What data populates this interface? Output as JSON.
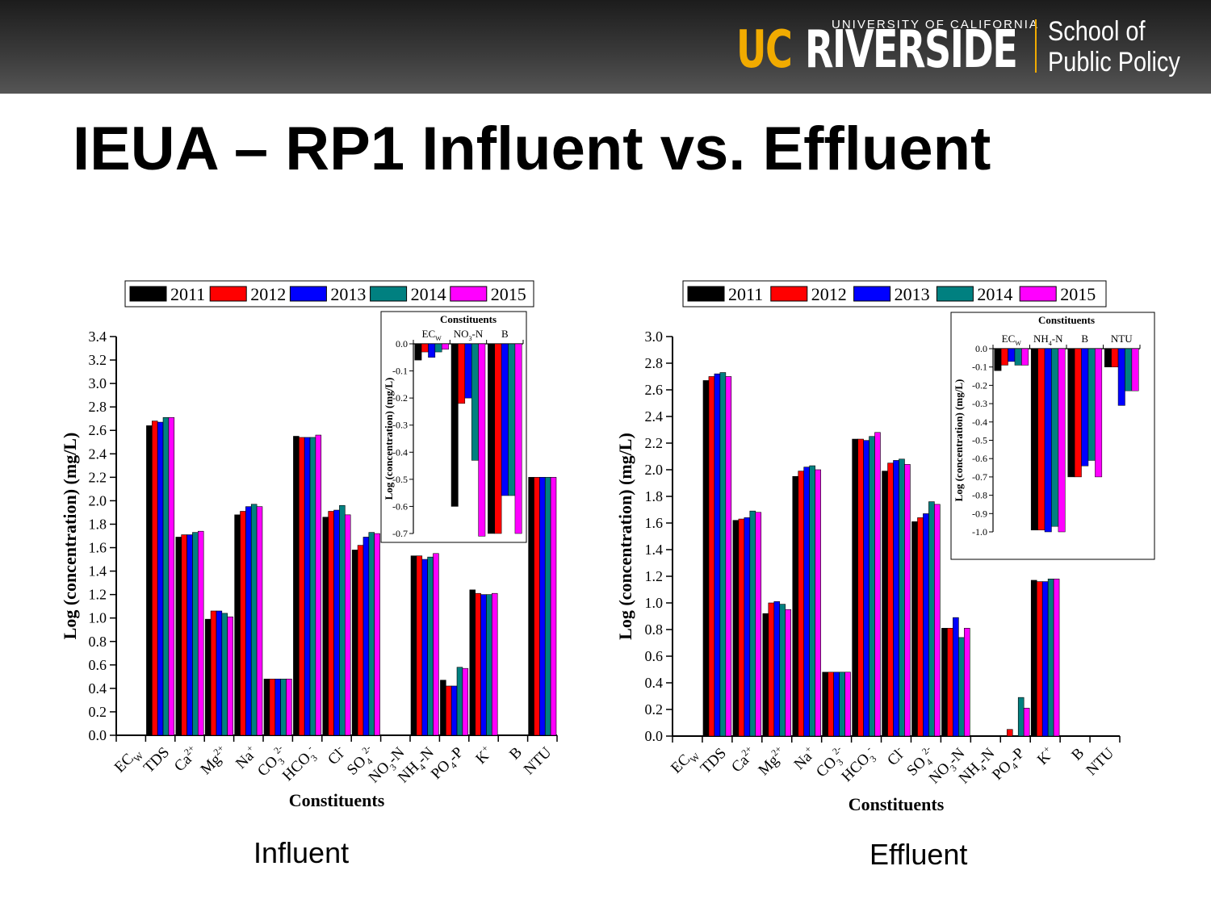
{
  "slide": {
    "title": "IEUA – RP1 Influent vs. Effluent",
    "logo_uc": "UC",
    "logo_riverside": "RIVERSIDE",
    "logo_university": "UNIVERSITY OF CALIFORNIA",
    "logo_school_line1": "School of",
    "logo_school_line2": "Public Policy",
    "caption_influent": "Influent",
    "caption_effluent": "Effluent",
    "brand_color": "#f1ab00"
  },
  "chart_data": [
    {
      "id": "influent-main",
      "type": "bar",
      "title": "",
      "xlabel": "Constituents",
      "ylabel": "Log (concentration) (mg/L)",
      "ylim": [
        0,
        3.4
      ],
      "yticks": [
        "0.0",
        "0.2",
        "0.4",
        "0.6",
        "0.8",
        "1.0",
        "1.2",
        "1.4",
        "1.6",
        "1.8",
        "2.0",
        "2.2",
        "2.4",
        "2.6",
        "2.8",
        "3.0",
        "3.2",
        "3.4"
      ],
      "categories": [
        "EC_W",
        "TDS",
        "Ca2+",
        "Mg2+",
        "Na+",
        "CO3 2-",
        "HCO3-",
        "Cl-",
        "SO4 2-",
        "NO3-N",
        "NH4-N",
        "PO4-P",
        "K+",
        "B",
        "NTU"
      ],
      "legend": [
        "2011",
        "2012",
        "2013",
        "2014",
        "2015"
      ],
      "colors": [
        "#000000",
        "#ff0000",
        "#0000ff",
        "#008080",
        "#ff00ff"
      ],
      "series": [
        {
          "name": "2011",
          "values": [
            null,
            2.64,
            1.69,
            0.99,
            1.88,
            0.48,
            2.55,
            1.86,
            1.58,
            null,
            1.53,
            0.47,
            1.24,
            null,
            2.2
          ]
        },
        {
          "name": "2012",
          "values": [
            null,
            2.68,
            1.71,
            1.06,
            1.91,
            0.48,
            2.54,
            1.91,
            1.62,
            null,
            1.53,
            0.42,
            1.21,
            null,
            2.2
          ]
        },
        {
          "name": "2013",
          "values": [
            null,
            2.67,
            1.71,
            1.06,
            1.95,
            0.48,
            2.54,
            1.92,
            1.69,
            null,
            1.5,
            0.42,
            1.2,
            null,
            2.2
          ]
        },
        {
          "name": "2014",
          "values": [
            null,
            2.71,
            1.73,
            1.04,
            1.97,
            0.48,
            2.54,
            1.96,
            1.73,
            null,
            1.52,
            0.58,
            1.2,
            null,
            2.2
          ]
        },
        {
          "name": "2015",
          "values": [
            null,
            2.71,
            1.74,
            1.01,
            1.95,
            0.48,
            2.56,
            1.88,
            1.72,
            null,
            1.55,
            0.57,
            1.21,
            null,
            2.2
          ]
        }
      ]
    },
    {
      "id": "influent-inset",
      "type": "bar",
      "title": "Constituents",
      "ylabel": "Log (concentration) (mg/L)",
      "ylim": [
        -0.7,
        0.0
      ],
      "yticks": [
        "0.0",
        "-0.1",
        "-0.2",
        "-0.3",
        "-0.4",
        "-0.5",
        "-0.6",
        "-0.7"
      ],
      "categories": [
        "EC_W",
        "NO3-N",
        "B"
      ],
      "series": [
        {
          "name": "2011",
          "values": [
            -0.06,
            -0.6,
            -0.7
          ]
        },
        {
          "name": "2012",
          "values": [
            -0.03,
            -0.22,
            -0.7
          ]
        },
        {
          "name": "2013",
          "values": [
            -0.05,
            -0.2,
            -0.56
          ]
        },
        {
          "name": "2014",
          "values": [
            -0.03,
            -0.43,
            -0.56
          ]
        },
        {
          "name": "2015",
          "values": [
            -0.02,
            -0.71,
            -0.7
          ]
        }
      ]
    },
    {
      "id": "effluent-main",
      "type": "bar",
      "title": "",
      "xlabel": "Constituents",
      "ylabel": "Log (concentration) (mg/L)",
      "ylim": [
        0,
        3.0
      ],
      "yticks": [
        "0.0",
        "0.2",
        "0.4",
        "0.6",
        "0.8",
        "1.0",
        "1.2",
        "1.4",
        "1.6",
        "1.8",
        "2.0",
        "2.2",
        "2.4",
        "2.6",
        "2.8",
        "3.0"
      ],
      "categories": [
        "EC_W",
        "TDS",
        "Ca2+",
        "Mg2+",
        "Na+",
        "CO3 2-",
        "HCO3-",
        "Cl-",
        "SO4 2-",
        "NO3-N",
        "NH4-N",
        "PO4-P",
        "K+",
        "B",
        "NTU"
      ],
      "legend": [
        "2011",
        "2012",
        "2013",
        "2014",
        "2015"
      ],
      "colors": [
        "#000000",
        "#ff0000",
        "#0000ff",
        "#008080",
        "#ff00ff"
      ],
      "series": [
        {
          "name": "2011",
          "values": [
            null,
            2.67,
            1.62,
            0.92,
            1.95,
            0.48,
            2.23,
            1.99,
            1.61,
            0.81,
            null,
            0.0,
            1.17,
            null,
            null
          ]
        },
        {
          "name": "2012",
          "values": [
            null,
            2.7,
            1.63,
            1.0,
            1.99,
            0.48,
            2.23,
            2.05,
            1.64,
            0.81,
            null,
            0.05,
            1.16,
            null,
            null
          ]
        },
        {
          "name": "2013",
          "values": [
            null,
            2.72,
            1.64,
            1.01,
            2.02,
            0.48,
            2.22,
            2.07,
            1.67,
            0.89,
            null,
            0.0,
            1.16,
            null,
            null
          ]
        },
        {
          "name": "2014",
          "values": [
            null,
            2.73,
            1.69,
            0.99,
            2.03,
            0.48,
            2.25,
            2.08,
            1.76,
            0.74,
            null,
            0.29,
            1.18,
            null,
            null
          ]
        },
        {
          "name": "2015",
          "values": [
            null,
            2.7,
            1.68,
            0.95,
            2.0,
            0.48,
            2.28,
            2.04,
            1.74,
            0.81,
            null,
            0.21,
            1.18,
            null,
            null
          ]
        }
      ]
    },
    {
      "id": "effluent-inset",
      "type": "bar",
      "title": "Constituents",
      "ylabel": "Log (concentration) (mg/L)",
      "ylim": [
        -1.0,
        0.0
      ],
      "yticks": [
        "0.0",
        "-0.1",
        "-0.2",
        "-0.3",
        "-0.4",
        "-0.5",
        "-0.6",
        "-0.7",
        "-0.8",
        "-0.9",
        "-1.0"
      ],
      "categories": [
        "EC_W",
        "NH4-N",
        "B",
        "NTU"
      ],
      "series": [
        {
          "name": "2011",
          "values": [
            -0.12,
            -0.99,
            -0.7,
            -0.1
          ]
        },
        {
          "name": "2012",
          "values": [
            -0.09,
            -0.99,
            -0.7,
            -0.1
          ]
        },
        {
          "name": "2013",
          "values": [
            -0.07,
            -1.0,
            -0.64,
            -0.31
          ]
        },
        {
          "name": "2014",
          "values": [
            -0.09,
            -0.97,
            -0.61,
            -0.23
          ]
        },
        {
          "name": "2015",
          "values": [
            -0.09,
            -1.0,
            -0.7,
            -0.23
          ]
        }
      ]
    }
  ]
}
